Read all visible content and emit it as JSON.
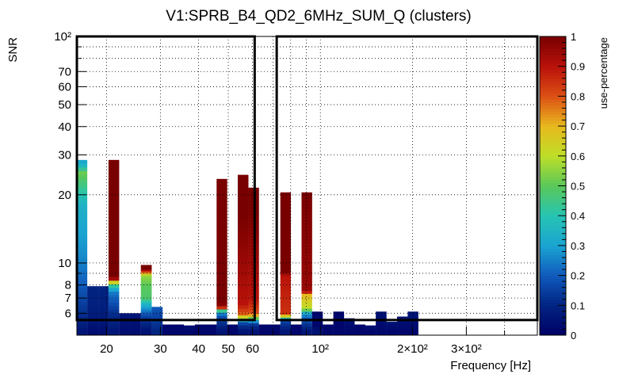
{
  "chart_data": {
    "type": "heatmap",
    "title": "V1:SPRB_B4_QD2_6MHz_SUM_Q (clusters)",
    "xlabel": "Frequency [Hz]",
    "ylabel": "SNR",
    "colorbar_label": "use-percentage",
    "x_scale": "log",
    "y_scale": "log",
    "xlim": [
      16,
      512
    ],
    "ylim": [
      4.8,
      100
    ],
    "zlim": [
      0,
      1
    ],
    "grid": true,
    "x_ticks": [
      {
        "value": 20,
        "label": "20"
      },
      {
        "value": 30,
        "label": "30"
      },
      {
        "value": 40,
        "label": "40"
      },
      {
        "value": 50,
        "label": "50"
      },
      {
        "value": 60,
        "label": "60"
      },
      {
        "value": 100,
        "label": "10²"
      },
      {
        "value": 200,
        "label": "2×10²"
      },
      {
        "value": 300,
        "label": "3×10²"
      }
    ],
    "y_ticks": [
      {
        "value": 6,
        "label": "6"
      },
      {
        "value": 7,
        "label": "7"
      },
      {
        "value": 8,
        "label": "8"
      },
      {
        "value": 10,
        "label": "10"
      },
      {
        "value": 20,
        "label": "20"
      },
      {
        "value": 30,
        "label": "30"
      },
      {
        "value": 40,
        "label": "40"
      },
      {
        "value": 50,
        "label": "50"
      },
      {
        "value": 60,
        "label": "60"
      },
      {
        "value": 70,
        "label": "70"
      },
      {
        "value": 100,
        "label": "10²"
      }
    ],
    "colorbar_ticks": [
      {
        "value": 0,
        "label": "0"
      },
      {
        "value": 0.1,
        "label": "0.1"
      },
      {
        "value": 0.2,
        "label": "0.2"
      },
      {
        "value": 0.3,
        "label": "0.3"
      },
      {
        "value": 0.4,
        "label": "0.4"
      },
      {
        "value": 0.5,
        "label": "0.5"
      },
      {
        "value": 0.6,
        "label": "0.6"
      },
      {
        "value": 0.7,
        "label": "0.7"
      },
      {
        "value": 0.8,
        "label": "0.8"
      },
      {
        "value": 0.9,
        "label": "0.9"
      },
      {
        "value": 1,
        "label": "1"
      }
    ],
    "highlight_boxes": [
      {
        "x_range": [
          16,
          61
        ],
        "y_range": [
          5.6,
          100
        ]
      },
      {
        "x_range": [
          72,
          512
        ],
        "y_range": [
          5.6,
          100
        ]
      }
    ],
    "columns": [
      {
        "x_range": [
          16.0,
          17.3
        ],
        "stops": [
          {
            "snr": 5.0,
            "use": 0.06
          },
          {
            "snr": 6.0,
            "use": 0.12
          },
          {
            "snr": 8.0,
            "use": 0.2
          },
          {
            "snr": 11.0,
            "use": 0.27
          },
          {
            "snr": 18.0,
            "use": 0.34
          },
          {
            "snr": 22.0,
            "use": 0.45
          },
          {
            "snr": 25.0,
            "use": 0.52
          },
          {
            "snr": 27.0,
            "use": 0.35
          },
          {
            "snr": 28.5,
            "use": 0.3
          }
        ]
      },
      {
        "x_range": [
          17.3,
          18.8
        ],
        "stops": [
          {
            "snr": 5.0,
            "use": 0.04
          },
          {
            "snr": 6.0,
            "use": 0.08
          },
          {
            "snr": 7.9,
            "use": 0.1
          }
        ]
      },
      {
        "x_range": [
          18.8,
          20.3
        ],
        "stops": [
          {
            "snr": 5.0,
            "use": 0.04
          },
          {
            "snr": 6.0,
            "use": 0.08
          },
          {
            "snr": 7.9,
            "use": 0.1
          }
        ]
      },
      {
        "x_range": [
          20.3,
          22.0
        ],
        "stops": [
          {
            "snr": 5.0,
            "use": 0.06
          },
          {
            "snr": 6.0,
            "use": 0.12
          },
          {
            "snr": 7.5,
            "use": 0.25
          },
          {
            "snr": 8.0,
            "use": 0.45
          },
          {
            "snr": 8.3,
            "use": 0.7
          },
          {
            "snr": 8.6,
            "use": 1.0
          },
          {
            "snr": 28.5,
            "use": 1.0
          }
        ]
      },
      {
        "x_range": [
          22.0,
          23.8
        ],
        "stops": [
          {
            "snr": 5.0,
            "use": 0.04
          },
          {
            "snr": 6.0,
            "use": 0.06
          }
        ]
      },
      {
        "x_range": [
          23.8,
          25.9
        ],
        "stops": [
          {
            "snr": 5.0,
            "use": 0.04
          },
          {
            "snr": 6.0,
            "use": 0.06
          }
        ]
      },
      {
        "x_range": [
          25.9,
          28.1
        ],
        "stops": [
          {
            "snr": 5.0,
            "use": 0.05
          },
          {
            "snr": 5.8,
            "use": 0.15
          },
          {
            "snr": 6.6,
            "use": 0.35
          },
          {
            "snr": 7.0,
            "use": 0.48
          },
          {
            "snr": 8.0,
            "use": 0.5
          },
          {
            "snr": 8.8,
            "use": 0.56
          },
          {
            "snr": 9.4,
            "use": 1.0
          },
          {
            "snr": 9.8,
            "use": 1.0
          }
        ]
      },
      {
        "x_range": [
          28.1,
          30.5
        ],
        "stops": [
          {
            "snr": 5.0,
            "use": 0.1
          },
          {
            "snr": 6.4,
            "use": 0.2
          }
        ]
      },
      {
        "x_range": [
          30.5,
          33.0
        ],
        "stops": [
          {
            "snr": 5.0,
            "use": 0.02
          }
        ]
      },
      {
        "x_range": [
          33.0,
          35.8
        ],
        "stops": [
          {
            "snr": 5.0,
            "use": 0.02
          }
        ]
      },
      {
        "x_range": [
          35.8,
          38.9
        ],
        "stops": [
          {
            "snr": 5.0,
            "use": 0.02
          },
          {
            "snr": 5.3,
            "use": 0.05
          }
        ]
      },
      {
        "x_range": [
          38.9,
          42.2
        ],
        "stops": [
          {
            "snr": 5.0,
            "use": 0.02
          }
        ]
      },
      {
        "x_range": [
          42.2,
          45.8
        ],
        "stops": [
          {
            "snr": 5.0,
            "use": 0.02
          }
        ]
      },
      {
        "x_range": [
          45.8,
          49.6
        ],
        "stops": [
          {
            "snr": 5.0,
            "use": 0.05
          },
          {
            "snr": 5.8,
            "use": 0.18
          },
          {
            "snr": 6.1,
            "use": 0.3
          },
          {
            "snr": 6.3,
            "use": 0.82
          },
          {
            "snr": 6.6,
            "use": 1.0
          },
          {
            "snr": 23.5,
            "use": 1.0
          }
        ]
      },
      {
        "x_range": [
          49.6,
          53.7
        ],
        "stops": [
          {
            "snr": 5.0,
            "use": 0.02
          }
        ]
      },
      {
        "x_range": [
          53.7,
          58.2
        ],
        "stops": [
          {
            "snr": 5.0,
            "use": 0.05
          },
          {
            "snr": 5.4,
            "use": 0.15
          },
          {
            "snr": 5.6,
            "use": 0.35
          },
          {
            "snr": 5.8,
            "use": 0.65
          },
          {
            "snr": 6.0,
            "use": 0.8
          },
          {
            "snr": 6.6,
            "use": 0.9
          },
          {
            "snr": 16.0,
            "use": 1.0
          },
          {
            "snr": 24.5,
            "use": 1.0
          }
        ]
      },
      {
        "x_range": [
          58.2,
          63.0
        ],
        "stops": [
          {
            "snr": 5.0,
            "use": 0.05
          },
          {
            "snr": 5.4,
            "use": 0.15
          },
          {
            "snr": 5.6,
            "use": 0.35
          },
          {
            "snr": 5.8,
            "use": 0.65
          },
          {
            "snr": 6.0,
            "use": 0.8
          },
          {
            "snr": 7.0,
            "use": 0.9
          },
          {
            "snr": 17.0,
            "use": 1.0
          },
          {
            "snr": 21.5,
            "use": 1.0
          }
        ]
      },
      {
        "x_range": [
          63.0,
          68.3
        ],
        "stops": [
          {
            "snr": 5.0,
            "use": 0.02
          }
        ]
      },
      {
        "x_range": [
          68.3,
          74.0
        ],
        "stops": [
          {
            "snr": 5.0,
            "use": 0.02
          }
        ]
      },
      {
        "x_range": [
          74.0,
          80.1
        ],
        "stops": [
          {
            "snr": 5.0,
            "use": 0.06
          },
          {
            "snr": 5.5,
            "use": 0.15
          },
          {
            "snr": 5.8,
            "use": 0.6
          },
          {
            "snr": 6.0,
            "use": 0.85
          },
          {
            "snr": 8.8,
            "use": 0.9
          },
          {
            "snr": 9.2,
            "use": 1.0
          },
          {
            "snr": 20.5,
            "use": 1.0
          }
        ]
      },
      {
        "x_range": [
          80.1,
          86.8
        ],
        "stops": [
          {
            "snr": 5.0,
            "use": 0.02
          }
        ]
      },
      {
        "x_range": [
          86.8,
          94.0
        ],
        "stops": [
          {
            "snr": 5.0,
            "use": 0.06
          },
          {
            "snr": 5.7,
            "use": 0.2
          },
          {
            "snr": 6.0,
            "use": 0.3
          },
          {
            "snr": 6.3,
            "use": 0.6
          },
          {
            "snr": 7.3,
            "use": 0.7
          },
          {
            "snr": 7.5,
            "use": 0.95
          },
          {
            "snr": 20.5,
            "use": 1.0
          }
        ]
      },
      {
        "x_range": [
          94.0,
          101.8
        ],
        "stops": [
          {
            "snr": 5.0,
            "use": 0.05
          },
          {
            "snr": 5.3,
            "use": 0.02
          },
          {
            "snr": 6.1,
            "use": 0.02
          }
        ]
      },
      {
        "x_range": [
          101.8,
          110.3
        ],
        "stops": [
          {
            "snr": 5.0,
            "use": 0.02
          }
        ]
      },
      {
        "x_range": [
          110.3,
          119.5
        ],
        "stops": [
          {
            "snr": 5.0,
            "use": 0.02
          },
          {
            "snr": 5.3,
            "use": 0.02
          },
          {
            "snr": 6.1,
            "use": 0.02
          }
        ]
      },
      {
        "x_range": [
          119.5,
          129.4
        ],
        "stops": [
          {
            "snr": 5.0,
            "use": 0.02
          },
          {
            "snr": 5.7,
            "use": 0.05
          }
        ]
      },
      {
        "x_range": [
          129.4,
          140.2
        ],
        "stops": [
          {
            "snr": 5.0,
            "use": 0.02
          }
        ]
      },
      {
        "x_range": [
          140.2,
          151.8
        ],
        "stops": [
          {
            "snr": 5.0,
            "use": 0.02
          },
          {
            "snr": 5.3,
            "use": 0.05
          }
        ]
      },
      {
        "x_range": [
          151.8,
          164.5
        ],
        "stops": [
          {
            "snr": 5.0,
            "use": 0.02
          },
          {
            "snr": 6.1,
            "use": 0.05
          }
        ]
      },
      {
        "x_range": [
          164.5,
          178.2
        ],
        "stops": [
          {
            "snr": 5.0,
            "use": 0.02
          },
          {
            "snr": 5.5,
            "use": 0.05
          }
        ]
      },
      {
        "x_range": [
          178.2,
          193.0
        ],
        "stops": [
          {
            "snr": 5.0,
            "use": 0.02
          },
          {
            "snr": 5.8,
            "use": 0.05
          }
        ]
      },
      {
        "x_range": [
          193.0,
          209.0
        ],
        "stops": [
          {
            "snr": 5.0,
            "use": 0.02
          },
          {
            "snr": 6.1,
            "use": 0.06
          }
        ]
      }
    ]
  }
}
